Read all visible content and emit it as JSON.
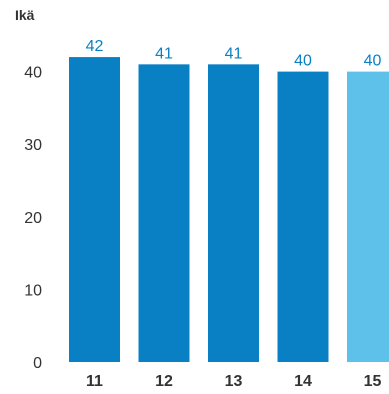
{
  "chart_data": {
    "type": "bar",
    "ylabel": "Ikä",
    "categories": [
      "11",
      "12",
      "13",
      "14",
      "15"
    ],
    "values": [
      42,
      41,
      41,
      40,
      40
    ],
    "data_labels": [
      "42",
      "41",
      "41",
      "40",
      "40"
    ],
    "yticks": [
      "0",
      "10",
      "20",
      "30",
      "40"
    ],
    "ylim": [
      0,
      50
    ],
    "grid": false,
    "highlight_index": 4,
    "colors": {
      "bar": "#0a80c4",
      "bar_highlight": "#5ec1ea",
      "label": "#0a80c4",
      "text": "#333333"
    }
  }
}
